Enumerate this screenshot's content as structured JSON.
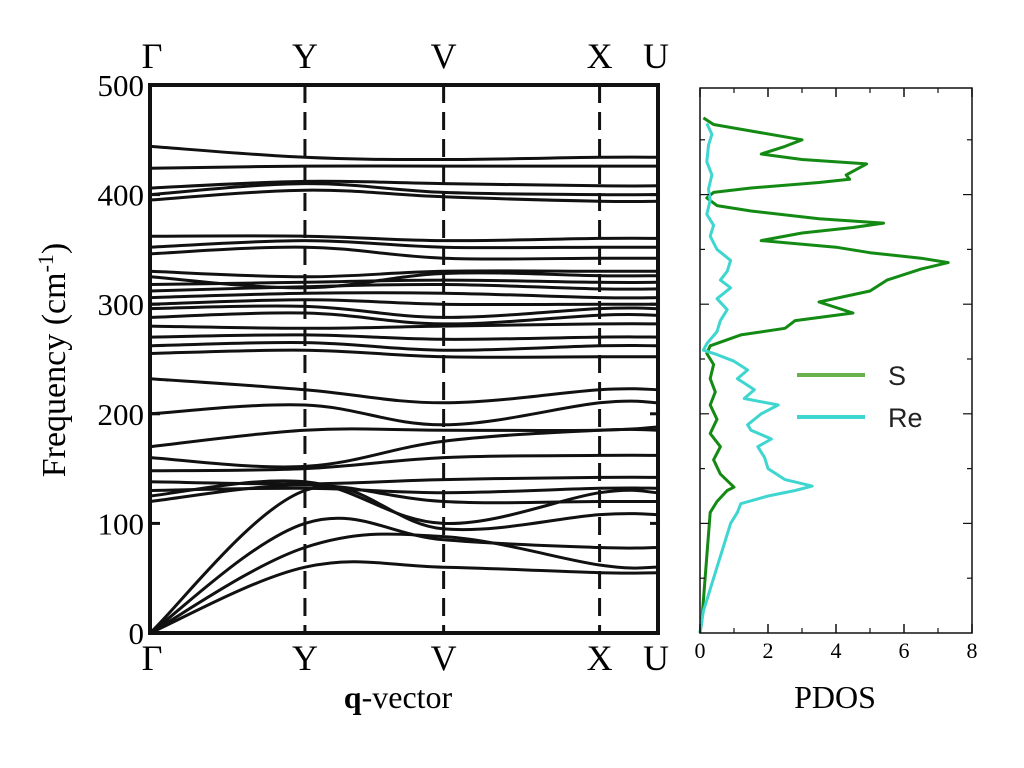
{
  "chart_data": [
    {
      "type": "line",
      "ylabel": "Frequency (cm",
      "ylabel_sup": "-1",
      "ylabel_close": ")",
      "xlabel_bold": "q",
      "xlabel_rest": "-vector",
      "ylim": [
        0,
        500
      ],
      "yticks": [
        "0",
        "100",
        "200",
        "300",
        "400",
        "500"
      ],
      "ytick_values": [
        0,
        100,
        200,
        300,
        400,
        500
      ],
      "kpoints": [
        "Γ",
        "Y",
        "V",
        "X",
        "U"
      ],
      "kpoint_positions": [
        0,
        0.305,
        0.578,
        0.885,
        1.0
      ],
      "line_color": "#111111",
      "bands": [
        [
          0,
          60,
          60,
          55,
          55
        ],
        [
          0,
          78,
          88,
          62,
          60
        ],
        [
          0,
          100,
          85,
          78,
          78
        ],
        [
          0,
          130,
          95,
          108,
          108
        ],
        [
          120,
          135,
          120,
          120,
          120
        ],
        [
          125,
          138,
          100,
          128,
          128
        ],
        [
          130,
          132,
          128,
          132,
          132
        ],
        [
          138,
          136,
          140,
          142,
          142
        ],
        [
          148,
          150,
          160,
          162,
          162
        ],
        [
          160,
          152,
          175,
          185,
          185
        ],
        [
          170,
          185,
          185,
          185,
          188
        ],
        [
          200,
          208,
          190,
          210,
          210
        ],
        [
          232,
          222,
          210,
          222,
          222
        ],
        [
          255,
          258,
          252,
          252,
          252
        ],
        [
          262,
          265,
          258,
          262,
          262
        ],
        [
          270,
          272,
          268,
          270,
          270
        ],
        [
          280,
          278,
          280,
          282,
          282
        ],
        [
          288,
          292,
          282,
          290,
          290
        ],
        [
          296,
          298,
          288,
          296,
          296
        ],
        [
          300,
          304,
          300,
          300,
          300
        ],
        [
          306,
          310,
          310,
          306,
          306
        ],
        [
          312,
          316,
          318,
          314,
          314
        ],
        [
          318,
          320,
          322,
          320,
          320
        ],
        [
          325,
          315,
          328,
          326,
          326
        ],
        [
          330,
          325,
          330,
          330,
          330
        ],
        [
          346,
          352,
          342,
          342,
          342
        ],
        [
          352,
          358,
          352,
          352,
          352
        ],
        [
          362,
          362,
          358,
          360,
          360
        ],
        [
          395,
          404,
          398,
          394,
          394
        ],
        [
          400,
          410,
          402,
          400,
          400
        ],
        [
          406,
          412,
          410,
          408,
          408
        ],
        [
          424,
          426,
          426,
          426,
          426
        ],
        [
          444,
          434,
          432,
          434,
          434
        ]
      ]
    },
    {
      "type": "line",
      "xlabel": "PDOS",
      "xlim": [
        0,
        8
      ],
      "ylim": [
        0,
        500
      ],
      "xticks": [
        "0",
        "2",
        "4",
        "6",
        "8"
      ],
      "xtick_values": [
        0,
        2,
        4,
        6,
        8
      ],
      "legend_position": "middle-right",
      "series": [
        {
          "name": "S",
          "color": "#138a13",
          "legend_color": "#6ab04c",
          "points": [
            [
              0,
              0
            ],
            [
              0.05,
              10
            ],
            [
              0.1,
              30
            ],
            [
              0.15,
              50
            ],
            [
              0.2,
              70
            ],
            [
              0.25,
              90
            ],
            [
              0.3,
              110
            ],
            [
              0.5,
              120
            ],
            [
              0.8,
              130
            ],
            [
              1.0,
              133
            ],
            [
              0.6,
              145
            ],
            [
              0.4,
              158
            ],
            [
              0.6,
              170
            ],
            [
              0.3,
              182
            ],
            [
              0.5,
              195
            ],
            [
              0.3,
              208
            ],
            [
              0.45,
              220
            ],
            [
              0.3,
              232
            ],
            [
              0.4,
              245
            ],
            [
              0.2,
              255
            ],
            [
              0.3,
              262
            ],
            [
              1.2,
              272
            ],
            [
              2.5,
              278
            ],
            [
              2.8,
              285
            ],
            [
              4.5,
              292
            ],
            [
              3.5,
              302
            ],
            [
              5.0,
              312
            ],
            [
              5.5,
              322
            ],
            [
              6.5,
              332
            ],
            [
              7.3,
              338
            ],
            [
              6.5,
              342
            ],
            [
              5.0,
              347
            ],
            [
              4.0,
              352
            ],
            [
              1.8,
              358
            ],
            [
              3.0,
              365
            ],
            [
              4.5,
              370
            ],
            [
              5.4,
              374
            ],
            [
              3.5,
              378
            ],
            [
              1.5,
              385
            ],
            [
              0.5,
              390
            ],
            [
              0.2,
              397
            ],
            [
              0.4,
              402
            ],
            [
              1.5,
              406
            ],
            [
              3.5,
              411
            ],
            [
              4.4,
              414
            ],
            [
              4.3,
              418
            ],
            [
              4.9,
              428
            ],
            [
              3.0,
              432
            ],
            [
              1.8,
              437
            ],
            [
              2.5,
              444
            ],
            [
              3.0,
              450
            ],
            [
              1.5,
              458
            ],
            [
              0.4,
              464
            ],
            [
              0.1,
              470
            ]
          ]
        },
        {
          "name": "Re",
          "color": "#3fd6d0",
          "legend_color": "#3fd6d0",
          "points": [
            [
              0,
              0
            ],
            [
              0.1,
              20
            ],
            [
              0.3,
              40
            ],
            [
              0.5,
              60
            ],
            [
              0.7,
              80
            ],
            [
              0.9,
              100
            ],
            [
              1.1,
              110
            ],
            [
              1.2,
              118
            ],
            [
              2.0,
              125
            ],
            [
              2.8,
              130
            ],
            [
              3.3,
              134
            ],
            [
              2.5,
              140
            ],
            [
              2.0,
              150
            ],
            [
              1.9,
              160
            ],
            [
              1.7,
              170
            ],
            [
              2.1,
              177
            ],
            [
              1.5,
              185
            ],
            [
              1.4,
              190
            ],
            [
              1.8,
              200
            ],
            [
              2.3,
              208
            ],
            [
              1.3,
              214
            ],
            [
              1.6,
              222
            ],
            [
              1.1,
              232
            ],
            [
              1.4,
              240
            ],
            [
              1.0,
              248
            ],
            [
              0.5,
              254
            ],
            [
              0.1,
              258
            ],
            [
              0.2,
              264
            ],
            [
              0.5,
              275
            ],
            [
              0.6,
              285
            ],
            [
              0.8,
              295
            ],
            [
              0.5,
              305
            ],
            [
              0.9,
              315
            ],
            [
              0.6,
              322
            ],
            [
              0.8,
              330
            ],
            [
              0.9,
              340
            ],
            [
              0.5,
              350
            ],
            [
              0.3,
              362
            ],
            [
              0.4,
              372
            ],
            [
              0.2,
              382
            ],
            [
              0.3,
              395
            ],
            [
              0.25,
              405
            ],
            [
              0.35,
              418
            ],
            [
              0.2,
              430
            ],
            [
              0.25,
              445
            ],
            [
              0.35,
              455
            ],
            [
              0.2,
              465
            ]
          ]
        }
      ]
    }
  ]
}
